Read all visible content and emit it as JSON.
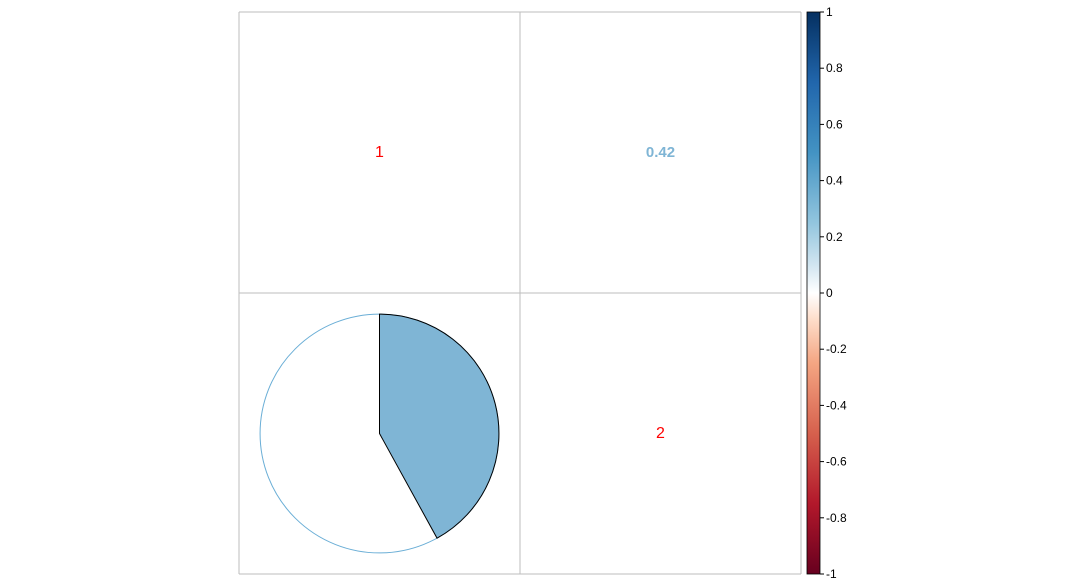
{
  "chart_data": {
    "type": "correlation-matrix",
    "variables": [
      "1",
      "2"
    ],
    "matrix": [
      [
        1,
        0.42
      ],
      [
        0.42,
        1
      ]
    ],
    "upper_method": "number",
    "lower_method": "pie",
    "diagonal": {
      "labels": [
        "1",
        "2"
      ],
      "label_color": "#ff0000"
    },
    "upper_cells": [
      {
        "row": 0,
        "col": 1,
        "value": 0.42,
        "label": "0.42",
        "color": "#7fb5d5"
      }
    ],
    "lower_cells": [
      {
        "row": 1,
        "col": 0,
        "value": 0.42,
        "fill": "#7fb5d5",
        "outline": "#6aaed6"
      }
    ],
    "colorbar": {
      "range": [
        -1,
        1
      ],
      "ticks": [
        "1",
        "0.8",
        "0.6",
        "0.4",
        "0.2",
        "0",
        "-0.2",
        "-0.4",
        "-0.6",
        "-0.8",
        "-1"
      ],
      "tick_values": [
        1,
        0.8,
        0.6,
        0.4,
        0.2,
        0,
        -0.2,
        -0.4,
        -0.6,
        -0.8,
        -1
      ],
      "stops": [
        {
          "value": -1,
          "color": "#67001f"
        },
        {
          "value": -0.75,
          "color": "#b2182b"
        },
        {
          "value": -0.5,
          "color": "#d6604d"
        },
        {
          "value": -0.25,
          "color": "#f4a582"
        },
        {
          "value": -0.1,
          "color": "#fddbc7"
        },
        {
          "value": 0,
          "color": "#ffffff"
        },
        {
          "value": 0.1,
          "color": "#d1e5f0"
        },
        {
          "value": 0.25,
          "color": "#92c5de"
        },
        {
          "value": 0.5,
          "color": "#4393c3"
        },
        {
          "value": 0.75,
          "color": "#2166ac"
        },
        {
          "value": 1,
          "color": "#053061"
        }
      ],
      "position": "right"
    },
    "grid_color": "#bebebe"
  }
}
